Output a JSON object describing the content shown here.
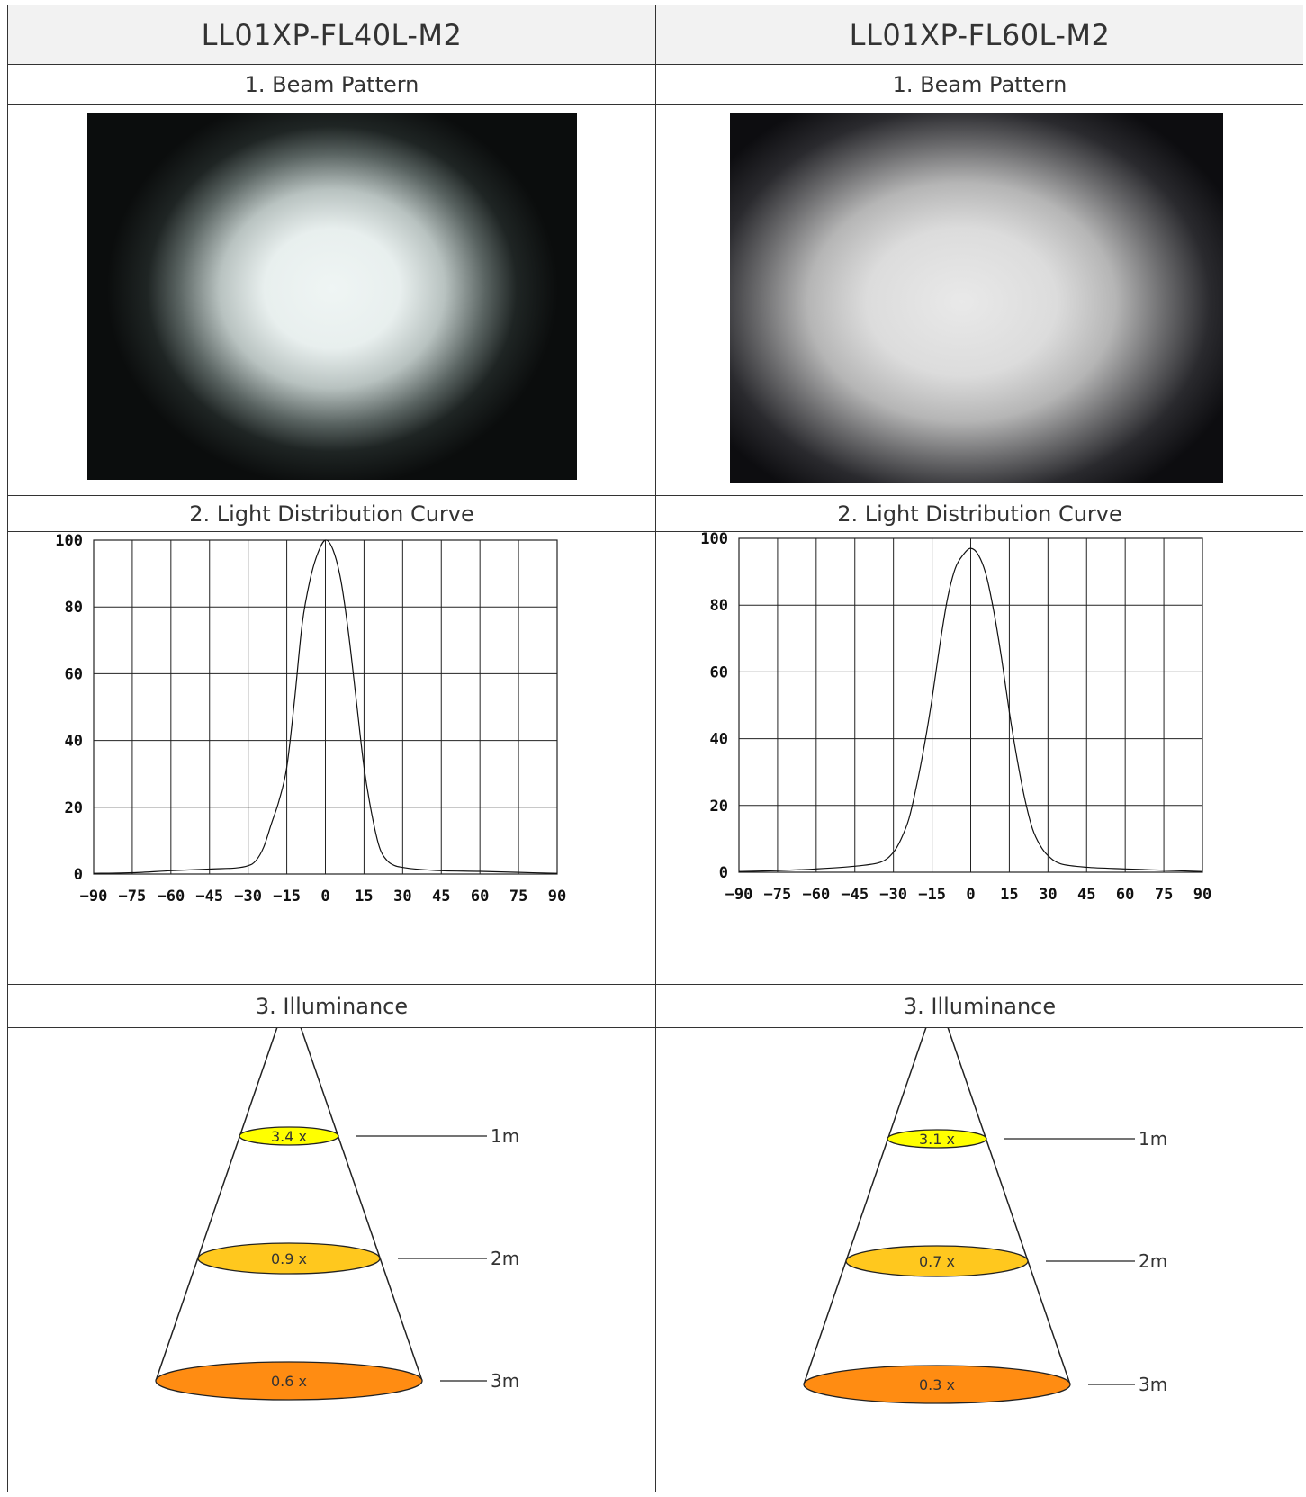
{
  "columns": [
    {
      "title": "LL01XP-FL40L-M2",
      "sections": {
        "beam": "1. Beam Pattern",
        "curve": "2. Light Distribution Curve",
        "illuminance": "3. Illuminance"
      },
      "illuminance": [
        {
          "value": "3.4 x",
          "distance": "1m",
          "color": "#ffff00"
        },
        {
          "value": "0.9 x",
          "distance": "2m",
          "color": "#ffc81e"
        },
        {
          "value": "0.6  x",
          "distance": "3m",
          "color": "#ff8c12"
        }
      ]
    },
    {
      "title": "LL01XP-FL60L-M2",
      "sections": {
        "beam": "1. Beam Pattern",
        "curve": "2. Light Distribution Curve",
        "illuminance": "3. Illuminance"
      },
      "illuminance": [
        {
          "value": "3.1 x",
          "distance": "1m",
          "color": "#ffff00"
        },
        {
          "value": "0.7 x",
          "distance": "2m",
          "color": "#ffc81e"
        },
        {
          "value": "0.3  x",
          "distance": "3m",
          "color": "#ff8c12"
        }
      ]
    }
  ],
  "chart_data": [
    {
      "type": "line",
      "title": "",
      "xlabel": "",
      "ylabel": "",
      "xlim": [
        -90,
        90
      ],
      "ylim": [
        0,
        100
      ],
      "xticks": [
        "-90",
        "-75",
        "-60",
        "-45",
        "-30",
        "-15",
        "0",
        "15",
        "30",
        "45",
        "60",
        "75",
        "90"
      ],
      "yticks": [
        "0",
        "20",
        "40",
        "60",
        "80",
        "100"
      ],
      "grid": true,
      "series": [
        {
          "x": [
            -90,
            -75,
            -60,
            -45,
            -35,
            -30,
            -27,
            -24,
            -21,
            -18,
            -15,
            -12,
            -9,
            -6,
            -3,
            0,
            3,
            6,
            9,
            12,
            15,
            18,
            21,
            24,
            27,
            30,
            35,
            45,
            60,
            75,
            90
          ],
          "y": [
            0.2,
            0.4,
            1,
            1.5,
            1.8,
            2.5,
            4,
            8,
            15,
            22,
            32,
            52,
            75,
            88,
            96,
            100,
            97,
            88,
            72,
            52,
            32,
            18,
            8,
            4,
            2.5,
            2,
            1.5,
            1,
            0.8,
            0.5,
            0.2
          ]
        }
      ]
    },
    {
      "type": "line",
      "title": "",
      "xlabel": "",
      "ylabel": "",
      "xlim": [
        -90,
        90
      ],
      "ylim": [
        0,
        100
      ],
      "xticks": [
        "-90",
        "-75",
        "-60",
        "-45",
        "-30",
        "-15",
        "0",
        "15",
        "30",
        "45",
        "60",
        "75",
        "90"
      ],
      "yticks": [
        "0",
        "20",
        "40",
        "60",
        "80",
        "100"
      ],
      "grid": true,
      "series": [
        {
          "x": [
            -90,
            -75,
            -60,
            -45,
            -35,
            -30,
            -27,
            -24,
            -21,
            -18,
            -15,
            -12,
            -9,
            -6,
            -3,
            0,
            3,
            6,
            9,
            12,
            15,
            18,
            21,
            24,
            27,
            30,
            35,
            45,
            60,
            75,
            90
          ],
          "y": [
            0.2,
            0.5,
            1,
            1.8,
            3,
            6,
            10,
            16,
            26,
            38,
            52,
            68,
            82,
            91,
            95,
            97,
            95,
            89,
            78,
            64,
            48,
            34,
            22,
            13,
            8,
            5,
            2.5,
            1.5,
            1,
            0.6,
            0.2
          ]
        }
      ]
    }
  ]
}
